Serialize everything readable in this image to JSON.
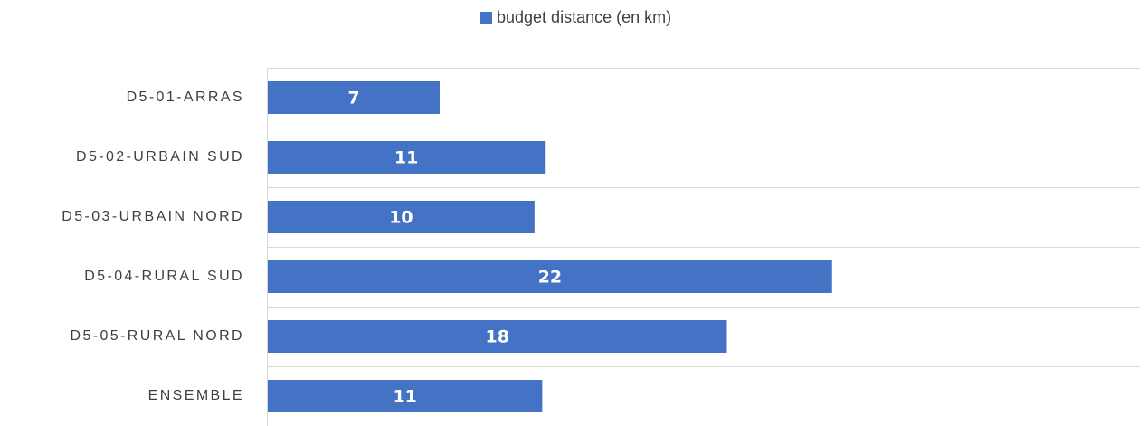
{
  "chart_data": {
    "type": "bar",
    "orientation": "horizontal",
    "categories": [
      "D5-01-ARRAS",
      "D5-02-URBAIN SUD",
      "D5-03-URBAIN NORD",
      "D5-04-RURAL SUD",
      "D5-05-RURAL NORD",
      "ENSEMBLE"
    ],
    "series": [
      {
        "name": "budget distance (en km)",
        "color": "#4472c4",
        "values": [
          6.7,
          10.8,
          10.4,
          22,
          17.9,
          10.7
        ],
        "value_labels": [
          "7",
          "11",
          "10",
          "22",
          "18",
          "11"
        ]
      }
    ],
    "xlim": [
      0,
      34
    ]
  }
}
